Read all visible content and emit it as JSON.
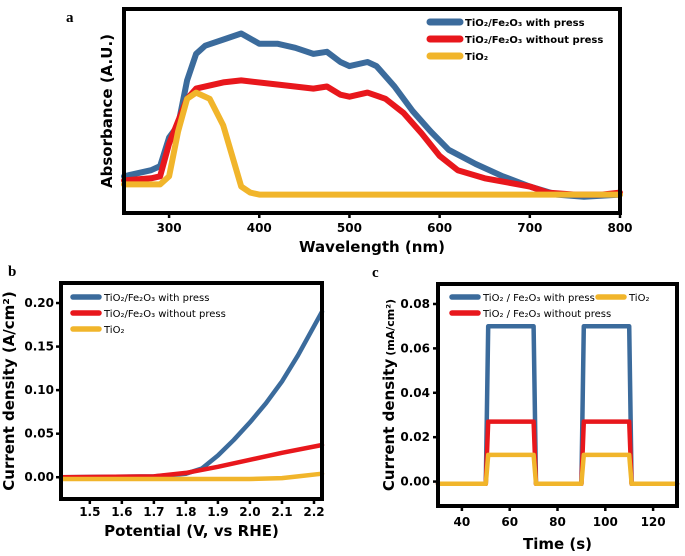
{
  "colors": {
    "with_press": "#3b6b9c",
    "without_press": "#e8171c",
    "tio2": "#f1b52b"
  },
  "chart_data": [
    {
      "panel_label": "a",
      "type": "line",
      "xlabel": "Wavelength (nm)",
      "ylabel": "Absorbance (A.U.)",
      "xlim": [
        250,
        800
      ],
      "ylim": [
        0,
        1
      ],
      "xticks": [
        300,
        400,
        500,
        600,
        700,
        800
      ],
      "yticks": [],
      "grid": false,
      "legend": "top-right",
      "series": [
        {
          "name": "TiO₂/Fe₂O₃ with press",
          "color_key": "with_press",
          "x": [
            250,
            280,
            290,
            300,
            310,
            320,
            330,
            340,
            360,
            380,
            400,
            420,
            440,
            460,
            475,
            490,
            500,
            520,
            530,
            550,
            570,
            590,
            610,
            640,
            670,
            700,
            730,
            760,
            800
          ],
          "y": [
            0.18,
            0.21,
            0.23,
            0.37,
            0.43,
            0.65,
            0.78,
            0.82,
            0.85,
            0.88,
            0.83,
            0.83,
            0.81,
            0.78,
            0.79,
            0.74,
            0.72,
            0.74,
            0.72,
            0.62,
            0.5,
            0.4,
            0.31,
            0.24,
            0.18,
            0.13,
            0.09,
            0.08,
            0.09
          ]
        },
        {
          "name": "TiO₂/Fe₂O₃ without press",
          "color_key": "without_press",
          "x": [
            250,
            280,
            290,
            300,
            320,
            330,
            360,
            380,
            420,
            460,
            475,
            490,
            500,
            520,
            540,
            560,
            580,
            600,
            620,
            650,
            700,
            720,
            750,
            780,
            800
          ],
          "y": [
            0.16,
            0.17,
            0.18,
            0.34,
            0.56,
            0.61,
            0.64,
            0.65,
            0.63,
            0.61,
            0.62,
            0.58,
            0.57,
            0.59,
            0.56,
            0.49,
            0.39,
            0.28,
            0.21,
            0.17,
            0.13,
            0.1,
            0.09,
            0.09,
            0.1
          ]
        },
        {
          "name": "TiO₂",
          "color_key": "tio2",
          "x": [
            250,
            290,
            300,
            310,
            320,
            330,
            345,
            360,
            370,
            380,
            390,
            400,
            600,
            800
          ],
          "y": [
            0.14,
            0.14,
            0.18,
            0.4,
            0.56,
            0.59,
            0.56,
            0.43,
            0.28,
            0.13,
            0.1,
            0.09,
            0.09,
            0.09
          ]
        }
      ]
    },
    {
      "panel_label": "b",
      "type": "line",
      "xlabel": "Potential (V, vs RHE)",
      "ylabel": "Current density (A/cm²)",
      "xlim": [
        1.41,
        2.225
      ],
      "ylim": [
        -0.025,
        0.223
      ],
      "xticks": [
        "1.5",
        "1.6",
        "1.7",
        "1.8",
        "1.9",
        "2.0",
        "2.1",
        "2.2"
      ],
      "yticks": [
        "0.00",
        "0.05",
        "0.10",
        "0.15",
        "0.20"
      ],
      "grid": false,
      "legend": "top-left",
      "series": [
        {
          "name": "TiO₂/Fe₂O₃ with press",
          "color_key": "with_press",
          "x": [
            1.41,
            1.7,
            1.8,
            1.85,
            1.9,
            1.95,
            2.0,
            2.05,
            2.1,
            2.15,
            2.225
          ],
          "y": [
            0,
            0.001,
            0.004,
            0.01,
            0.025,
            0.043,
            0.063,
            0.085,
            0.11,
            0.14,
            0.19
          ]
        },
        {
          "name": "TiO₂/Fe₂O₃ without press",
          "color_key": "without_press",
          "x": [
            1.41,
            1.7,
            1.8,
            1.9,
            2.0,
            2.1,
            2.225
          ],
          "y": [
            0,
            0.001,
            0.005,
            0.012,
            0.02,
            0.028,
            0.037
          ]
        },
        {
          "name": "TiO₂",
          "color_key": "tio2",
          "x": [
            1.41,
            1.8,
            2.0,
            2.1,
            2.15,
            2.225
          ],
          "y": [
            -0.002,
            -0.002,
            -0.002,
            -0.001,
            0.001,
            0.004
          ]
        }
      ]
    },
    {
      "panel_label": "c",
      "type": "line",
      "xlabel": "Time (s)",
      "ylabel": "Current density",
      "ylabel_unit": "(mA/cm²)",
      "xlim": [
        30,
        130
      ],
      "ylim": [
        -0.011,
        0.089
      ],
      "xticks": [
        "40",
        "60",
        "80",
        "100",
        "120"
      ],
      "yticks": [
        "0.00",
        "0.02",
        "0.04",
        "0.06",
        "0.08"
      ],
      "grid": false,
      "legend": "top",
      "series": [
        {
          "name": "TiO₂ / Fe₂O₃ with press",
          "color_key": "with_press",
          "x": [
            30,
            50,
            51,
            70,
            71,
            90,
            91,
            110,
            111,
            130
          ],
          "y": [
            -0.001,
            -0.001,
            0.07,
            0.07,
            -0.001,
            -0.001,
            0.07,
            0.07,
            -0.001,
            -0.001
          ]
        },
        {
          "name": "TiO₂ / Fe₂O₃ without press",
          "color_key": "without_press",
          "x": [
            30,
            50,
            51,
            70,
            71,
            90,
            91,
            110,
            111,
            130
          ],
          "y": [
            -0.001,
            -0.001,
            0.027,
            0.027,
            -0.001,
            -0.001,
            0.027,
            0.027,
            -0.001,
            -0.001
          ]
        },
        {
          "name": "TiO₂",
          "color_key": "tio2",
          "x": [
            30,
            50,
            51,
            70,
            71,
            90,
            91,
            110,
            111,
            130
          ],
          "y": [
            -0.001,
            -0.001,
            0.012,
            0.012,
            -0.001,
            -0.001,
            0.012,
            0.012,
            -0.001,
            -0.001
          ]
        }
      ]
    }
  ]
}
